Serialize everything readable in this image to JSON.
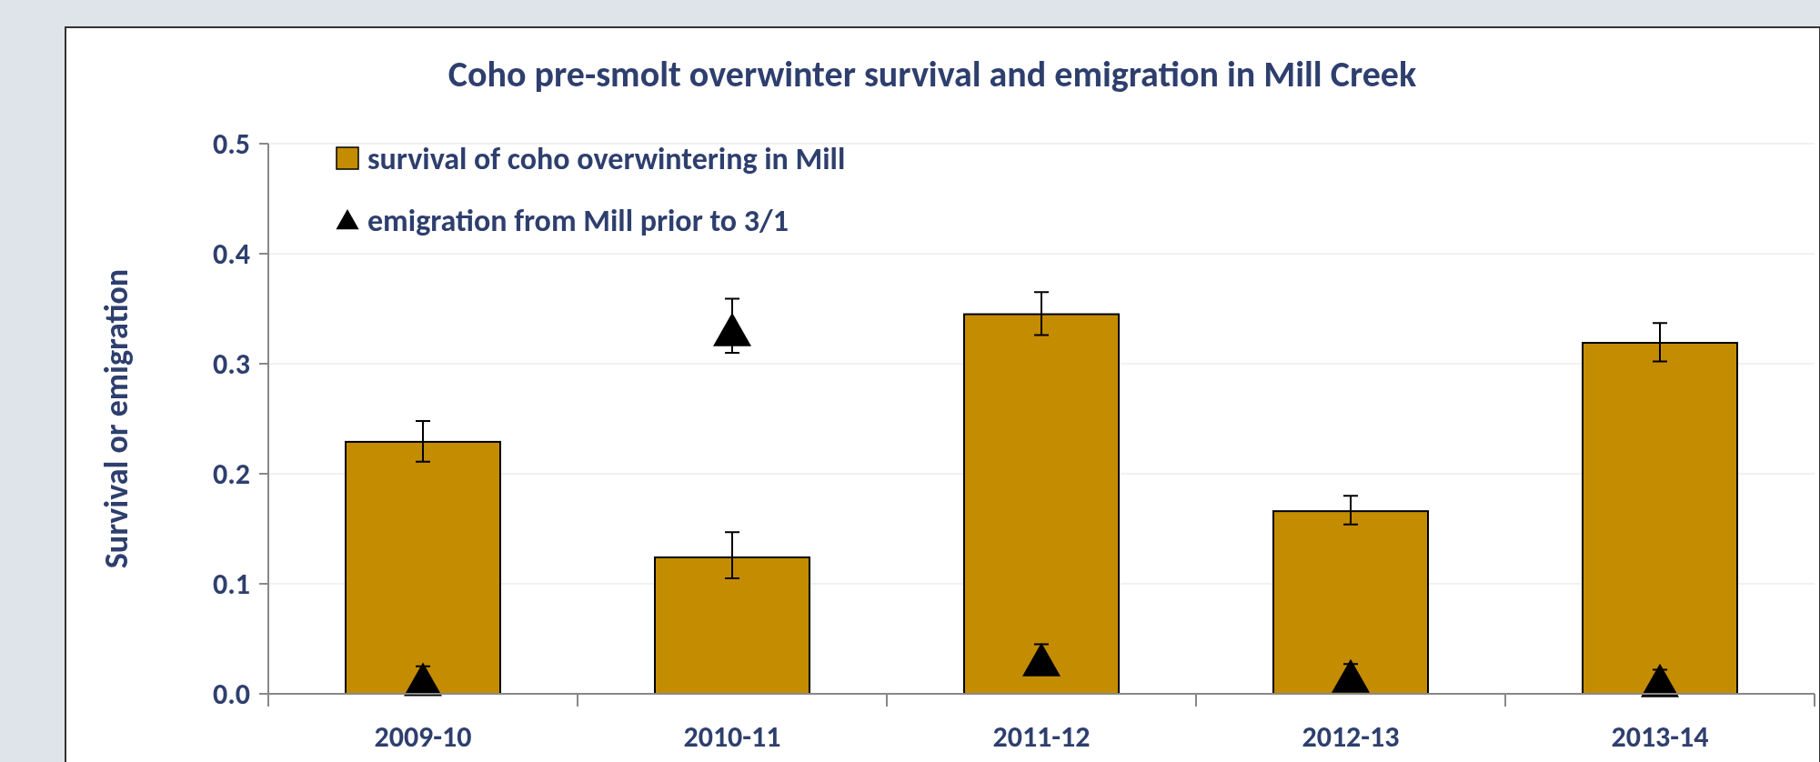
{
  "chart_data": {
    "type": "bar",
    "title": "Coho pre-smolt overwinter survival and emigration in Mill Creek",
    "ylabel": "Survival or emigration",
    "categories": [
      "2009-10",
      "2010-11",
      "2011-12",
      "2012-13",
      "2013-14"
    ],
    "series": [
      {
        "name": "survival of coho overwintering in Mill",
        "color": "#c48c00",
        "values": [
          0.229,
          0.124,
          0.345,
          0.166,
          0.319
        ],
        "errors": [
          [
            0.211,
            0.248
          ],
          [
            0.105,
            0.147
          ],
          [
            0.326,
            0.365
          ],
          [
            0.154,
            0.18
          ],
          [
            0.302,
            0.337
          ]
        ]
      },
      {
        "name": "emigration from Mill prior to 3/1",
        "type": "scatter",
        "marker": "triangle",
        "color": "#000000",
        "values": [
          0.012,
          0.33,
          0.03,
          0.015,
          0.011
        ],
        "errors": [
          [
            0.012,
            0.025
          ],
          [
            0.31,
            0.359
          ],
          [
            0.03,
            0.045
          ],
          [
            0.015,
            0.027
          ],
          [
            0.011,
            0.022
          ]
        ]
      }
    ],
    "ylim": [
      0,
      0.5
    ],
    "yticks": [
      {
        "value": 0,
        "label": "0.0"
      },
      {
        "value": 0.1,
        "label": "0.1"
      },
      {
        "value": 0.2,
        "label": "0.2"
      },
      {
        "value": 0.3,
        "label": "0.3"
      },
      {
        "value": 0.4,
        "label": "0.4"
      },
      {
        "value": 0.5,
        "label": "0.5"
      }
    ],
    "grid": "y",
    "legend": "top left"
  }
}
